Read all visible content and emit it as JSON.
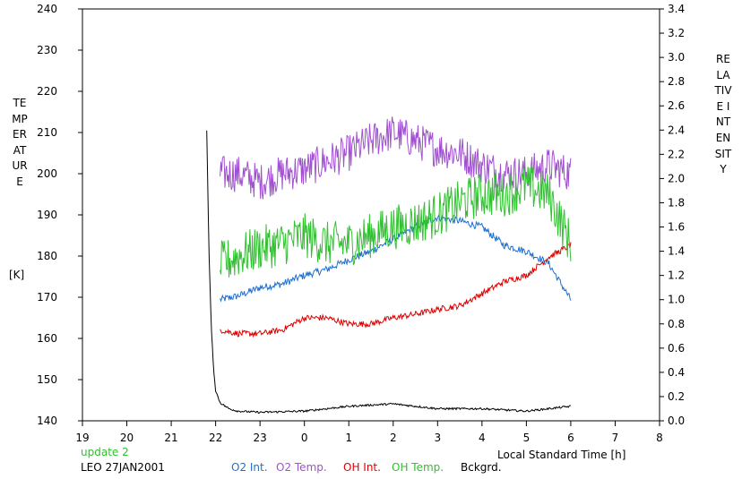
{
  "labels": {
    "left_axis": "TEMPERATURE",
    "left_unit": "[K]",
    "right_axis": "RELATIVE INTENSITY",
    "x_axis": "Local Standard Time [h]",
    "update": "update 2",
    "station_date": "LEO 27JAN2001"
  },
  "legend": [
    {
      "label": "O2 Int.",
      "color": "#1f6fd0"
    },
    {
      "label": "O2 Temp.",
      "color": "#a050d0"
    },
    {
      "label": "OH Int.",
      "color": "#e00000"
    },
    {
      "label": "OH Temp.",
      "color": "#30c030"
    },
    {
      "label": "Bckgrd.",
      "color": "#000000"
    }
  ],
  "colors": {
    "update": "#30c030"
  },
  "chart_data": {
    "type": "line",
    "xlabel": "Local Standard Time [h]",
    "x_ticks": [
      19,
      20,
      21,
      22,
      23,
      0,
      1,
      2,
      3,
      4,
      5,
      6,
      7,
      8
    ],
    "xlim": [
      19,
      32
    ],
    "y_left": {
      "label": "TEMPERATURE [K]",
      "lim": [
        140,
        240
      ],
      "ticks": [
        140,
        150,
        160,
        170,
        180,
        190,
        200,
        210,
        220,
        230,
        240
      ]
    },
    "y_right": {
      "label": "RELATIVE INTENSITY",
      "lim": [
        0.0,
        3.4
      ],
      "ticks": [
        "0.0",
        "0.2",
        "0.4",
        "0.6",
        "0.8",
        "1.0",
        "1.2",
        "1.4",
        "1.6",
        "1.8",
        "2.0",
        "2.2",
        "2.4",
        "2.6",
        "2.8",
        "3.0",
        "3.2",
        "3.4"
      ]
    },
    "series": [
      {
        "name": "O2 Int.",
        "axis": "right",
        "color": "#1f6fd0",
        "x": [
          22.1,
          22.5,
          23.0,
          23.5,
          24.0,
          24.5,
          25.0,
          25.5,
          26.0,
          26.5,
          27.0,
          27.5,
          28.0,
          28.5,
          29.0,
          29.5,
          30.0
        ],
        "y": [
          1.0,
          1.03,
          1.1,
          1.13,
          1.2,
          1.25,
          1.33,
          1.4,
          1.5,
          1.6,
          1.68,
          1.65,
          1.6,
          1.45,
          1.4,
          1.3,
          1.0
        ],
        "noise": 0.03
      },
      {
        "name": "O2 Temp.",
        "axis": "left",
        "color": "#a050d0",
        "x": [
          22.1,
          22.5,
          23.0,
          23.5,
          24.0,
          24.5,
          25.0,
          25.5,
          26.0,
          26.5,
          27.0,
          27.5,
          28.0,
          28.5,
          29.0,
          29.5,
          30.0
        ],
        "y": [
          200,
          200,
          198,
          200,
          201,
          203,
          205,
          208,
          210,
          208,
          206,
          205,
          202,
          200,
          200,
          202,
          200
        ],
        "noise": 4.5
      },
      {
        "name": "OH Int.",
        "axis": "right",
        "color": "#e00000",
        "x": [
          22.1,
          22.5,
          23.0,
          23.5,
          24.0,
          24.5,
          25.0,
          25.5,
          26.0,
          26.5,
          27.0,
          27.5,
          28.0,
          28.5,
          29.0,
          29.5,
          30.0
        ],
        "y": [
          0.75,
          0.72,
          0.72,
          0.75,
          0.85,
          0.85,
          0.8,
          0.8,
          0.85,
          0.88,
          0.92,
          0.95,
          1.05,
          1.15,
          1.2,
          1.35,
          1.45
        ],
        "noise": 0.025
      },
      {
        "name": "OH Temp.",
        "axis": "left",
        "color": "#30c030",
        "x": [
          22.1,
          22.5,
          23.0,
          23.5,
          24.0,
          24.5,
          25.0,
          25.5,
          26.0,
          26.5,
          27.0,
          27.5,
          28.0,
          28.5,
          29.0,
          29.5,
          30.0
        ],
        "y": [
          178,
          180,
          182,
          183,
          185,
          183,
          183,
          185,
          187,
          188,
          190,
          193,
          195,
          195,
          197,
          195,
          183
        ],
        "noise": 5.5
      },
      {
        "name": "Bckgrd.",
        "axis": "right",
        "color": "#000000",
        "x": [
          21.8,
          21.85,
          21.9,
          21.95,
          22.0,
          22.1,
          22.3,
          22.5,
          23.0,
          24.0,
          25.0,
          26.0,
          27.0,
          28.0,
          29.0,
          30.0
        ],
        "y": [
          2.4,
          1.4,
          0.8,
          0.45,
          0.25,
          0.15,
          0.1,
          0.08,
          0.07,
          0.08,
          0.12,
          0.14,
          0.1,
          0.1,
          0.08,
          0.12
        ],
        "noise": 0.008
      }
    ]
  }
}
